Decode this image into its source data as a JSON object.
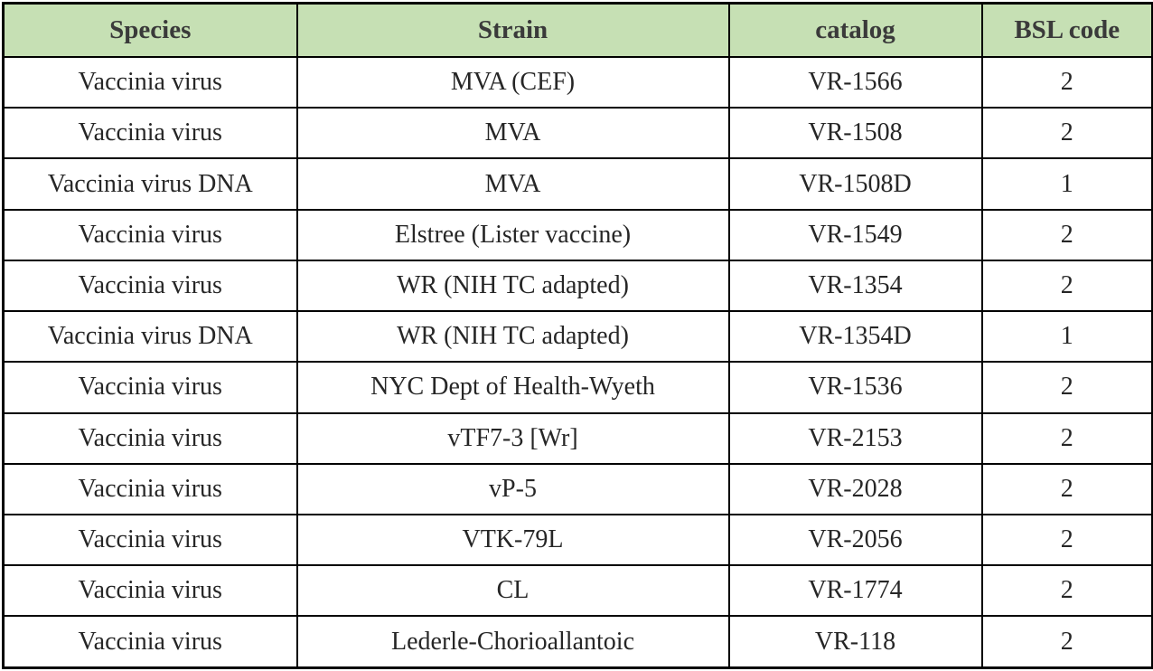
{
  "table": {
    "columns": [
      "Species",
      "Strain",
      "catalog",
      "BSL code"
    ],
    "rows": [
      [
        "Vaccinia virus",
        "MVA (CEF)",
        "VR-1566",
        "2"
      ],
      [
        "Vaccinia virus",
        "MVA",
        "VR-1508",
        "2"
      ],
      [
        "Vaccinia virus DNA",
        "MVA",
        "VR-1508D",
        "1"
      ],
      [
        "Vaccinia virus",
        "Elstree (Lister vaccine)",
        "VR-1549",
        "2"
      ],
      [
        "Vaccinia virus",
        "WR (NIH TC adapted)",
        "VR-1354",
        "2"
      ],
      [
        "Vaccinia virus DNA",
        "WR (NIH TC adapted)",
        "VR-1354D",
        "1"
      ],
      [
        "Vaccinia virus",
        "NYC Dept of Health-Wyeth",
        "VR-1536",
        "2"
      ],
      [
        "Vaccinia virus",
        "vTF7-3 [Wr]",
        "VR-2153",
        "2"
      ],
      [
        "Vaccinia virus",
        "vP-5",
        "VR-2028",
        "2"
      ],
      [
        "Vaccinia virus",
        "VTK-79L",
        "VR-2056",
        "2"
      ],
      [
        "Vaccinia virus",
        "CL",
        "VR-1774",
        "2"
      ],
      [
        "Vaccinia virus",
        "Lederle-Chorioallantoic",
        "VR-118",
        "2"
      ]
    ],
    "colors": {
      "header_bg": "#c6e0b4",
      "border": "#000000",
      "header_text": "#3a3a3a",
      "body_text": "#262626"
    }
  }
}
